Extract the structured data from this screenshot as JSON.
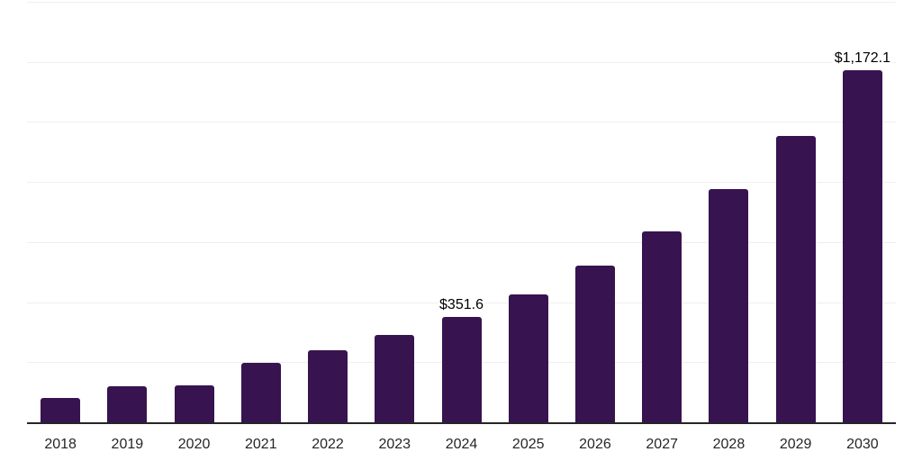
{
  "chart_data": {
    "type": "bar",
    "title": "",
    "xlabel": "",
    "ylabel": "",
    "categories": [
      "2018",
      "2019",
      "2020",
      "2021",
      "2022",
      "2023",
      "2024",
      "2025",
      "2026",
      "2027",
      "2028",
      "2029",
      "2030"
    ],
    "values": [
      80,
      120,
      123,
      198,
      240,
      290,
      351.6,
      427,
      521,
      635,
      776,
      954,
      1172.1
    ],
    "data_labels": [
      "",
      "",
      "",
      "",
      "",
      "",
      "$351.6",
      "",
      "",
      "",
      "",
      "",
      "$1,172.1"
    ],
    "ylim": [
      0,
      1400
    ],
    "gridline_step": 200,
    "grid": "horizontal-only",
    "legend": "none",
    "y_tick_labels_visible": false,
    "colors": {
      "bar_fill": "#371350",
      "axis_line": "#262626",
      "gridline": "#efefef",
      "x_tick_label": "#262626",
      "data_label": "#000000",
      "background": "#ffffff"
    }
  }
}
